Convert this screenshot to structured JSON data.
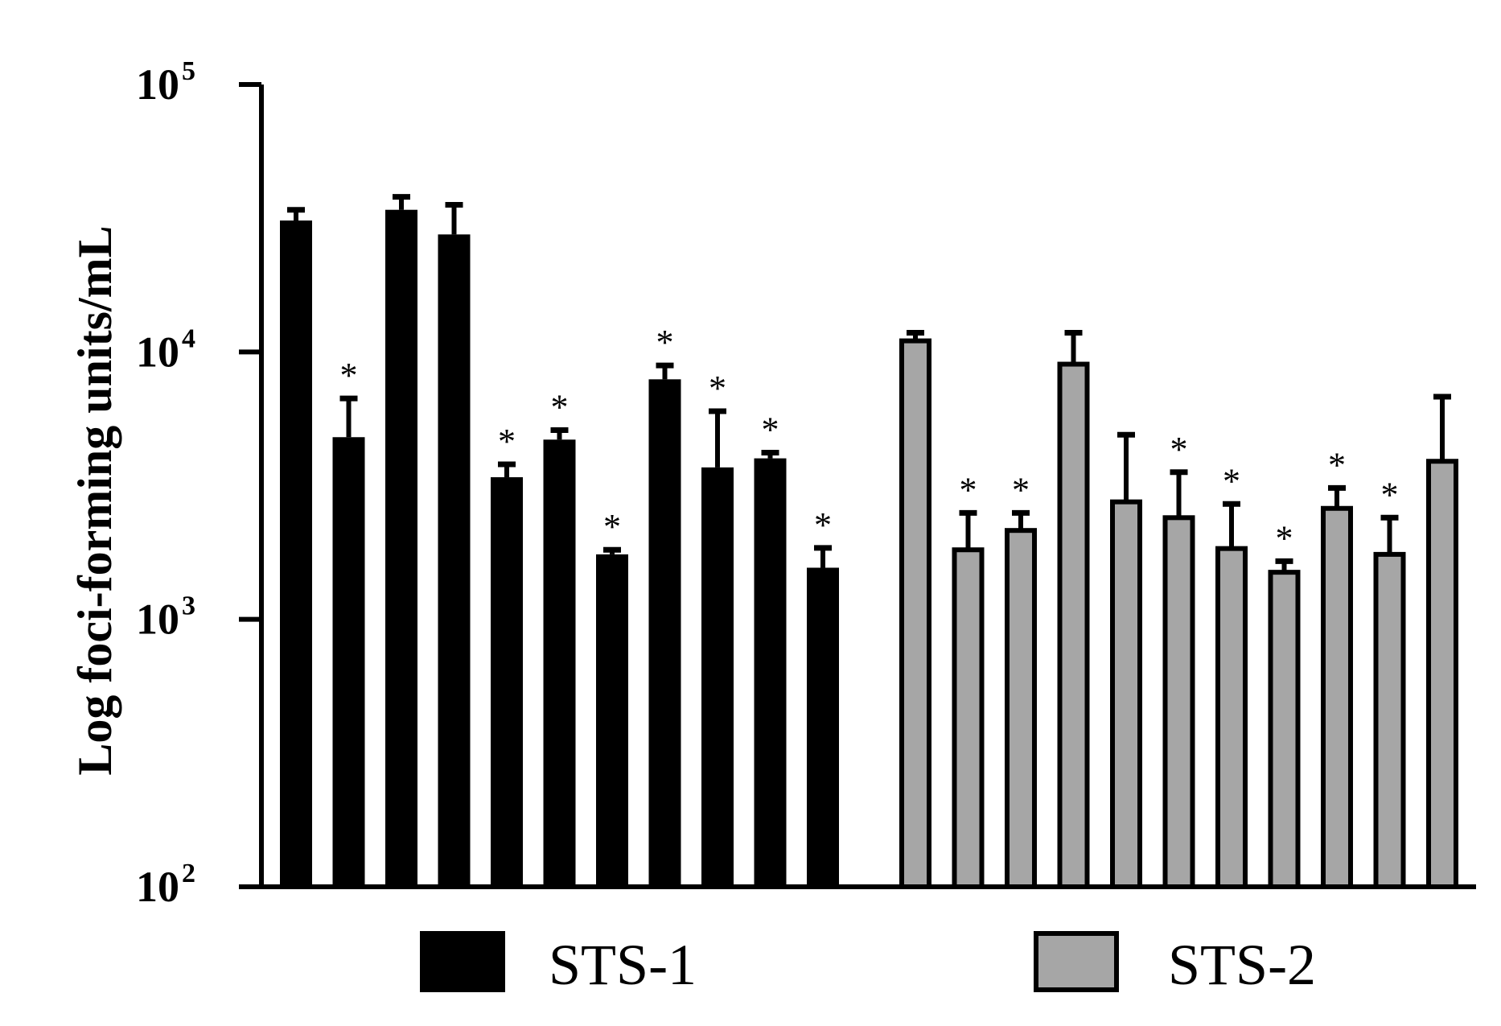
{
  "chart_data": {
    "type": "bar",
    "ylabel": "Log foci-forming units/mL",
    "yscale": "log",
    "ylim": [
      100,
      100000
    ],
    "yticks": [
      {
        "value": 100000,
        "base": "10",
        "exp": "5"
      },
      {
        "value": 10000,
        "base": "10",
        "exp": "4"
      },
      {
        "value": 1000,
        "base": "10",
        "exp": "3"
      },
      {
        "value": 100,
        "base": "10",
        "exp": "2"
      }
    ],
    "significance_marker": "*",
    "legend_position": "bottom",
    "series": [
      {
        "name": "STS-1",
        "color": "#000000",
        "values": [
          31000,
          4800,
          34000,
          27500,
          3400,
          4700,
          1750,
          7900,
          3700,
          4000,
          1560
        ],
        "error_upper": [
          34000,
          6700,
          38000,
          35500,
          3800,
          5100,
          1820,
          8900,
          6000,
          4200,
          1850
        ],
        "significant": [
          false,
          true,
          false,
          false,
          true,
          true,
          true,
          true,
          true,
          true,
          true
        ]
      },
      {
        "name": "STS-2",
        "color": "#a6a6a6",
        "values": [
          11000,
          1820,
          2150,
          9000,
          2750,
          2400,
          1840,
          1500,
          2600,
          1750,
          3900
        ],
        "error_upper": [
          11800,
          2500,
          2500,
          11800,
          4900,
          3550,
          2700,
          1650,
          3100,
          2400,
          6800
        ],
        "significant": [
          false,
          true,
          true,
          false,
          false,
          true,
          true,
          true,
          true,
          true,
          false
        ]
      }
    ]
  }
}
